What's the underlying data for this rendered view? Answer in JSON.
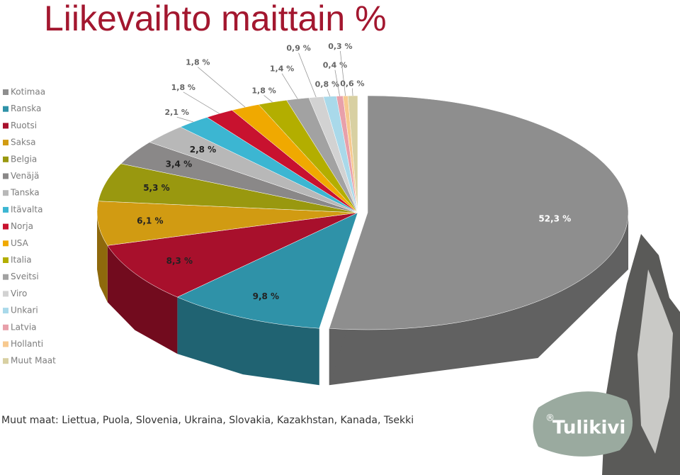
{
  "chart_data": {
    "type": "pie",
    "title": "Liikevaihto maittain %",
    "categories": [
      "Kotimaa",
      "Ranska",
      "Ruotsi",
      "Saksa",
      "Belgia",
      "Venäjä",
      "Tanska",
      "Itävalta",
      "Norja",
      "USA",
      "Italia",
      "Sveitsi",
      "Viro",
      "Unkari",
      "Latvia",
      "Hollanti",
      "Muut Maat"
    ],
    "values": [
      52.3,
      9.8,
      8.3,
      6.1,
      5.3,
      3.4,
      2.8,
      2.1,
      1.8,
      1.8,
      1.8,
      1.4,
      0.9,
      0.8,
      0.4,
      0.3,
      0.6
    ],
    "value_labels": [
      "52,3 %",
      "9,8 %",
      "8,3 %",
      "6,1 %",
      "5,3 %",
      "3,4 %",
      "2,8 %",
      "2,1 %",
      "1,8 %",
      "1,8 %",
      "1,8 %",
      "1,4 %",
      "0,9 %",
      "0,8 %",
      "0,4 %",
      "0,3 %",
      "0,6 %"
    ],
    "colors": [
      "#8e8e8e",
      "#2f92a8",
      "#a8102c",
      "#d19b12",
      "#99980f",
      "#8a8888",
      "#b8b8b8",
      "#3cb6d2",
      "#c8122f",
      "#f0a900",
      "#b3ae00",
      "#a2a2a2",
      "#d2d2d2",
      "#a9d9ea",
      "#e8a0aa",
      "#f7c98f",
      "#d8d0a2"
    ],
    "legend": "left",
    "footnote": "Muut maat: Liettua, Puola, Slovenia, Ukraina, Slovakia, Kazakhstan, Kanada, Tsekki"
  },
  "logo": {
    "mark": "®",
    "name": "Tulikivi"
  }
}
